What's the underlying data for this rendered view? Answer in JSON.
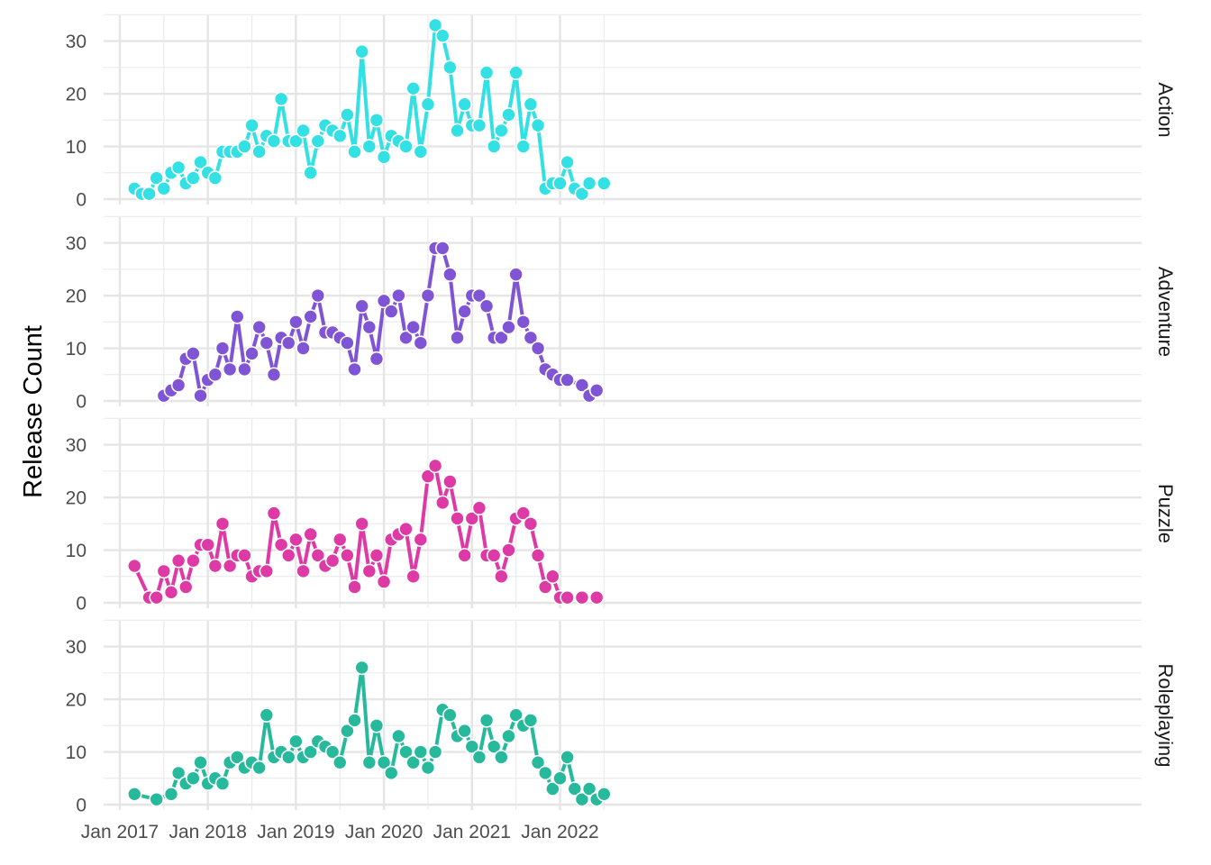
{
  "chart_data": {
    "type": "line",
    "ylabel": "Release Count",
    "xlabel": "",
    "ylim": [
      0,
      33
    ],
    "y_ticks": [
      0,
      10,
      20,
      30
    ],
    "x_range": [
      "2017-01-01",
      "2022-07-01"
    ],
    "x_ticks": [
      {
        "date": "2017-01-01",
        "label": "Jan 2017"
      },
      {
        "date": "2018-01-01",
        "label": "Jan 2018"
      },
      {
        "date": "2019-01-01",
        "label": "Jan 2019"
      },
      {
        "date": "2020-01-01",
        "label": "Jan 2020"
      },
      {
        "date": "2021-01-01",
        "label": "Jan 2021"
      },
      {
        "date": "2022-01-01",
        "label": "Jan 2022"
      }
    ],
    "grid": true,
    "legend": "none",
    "series": [
      {
        "name": "Action",
        "color": "#33e0e3",
        "points": [
          [
            "2017-03-01",
            2
          ],
          [
            "2017-04-01",
            1
          ],
          [
            "2017-05-01",
            1
          ],
          [
            "2017-06-01",
            4
          ],
          [
            "2017-07-01",
            2
          ],
          [
            "2017-08-01",
            5
          ],
          [
            "2017-09-01",
            6
          ],
          [
            "2017-10-01",
            3
          ],
          [
            "2017-11-01",
            4
          ],
          [
            "2017-12-01",
            7
          ],
          [
            "2018-01-01",
            5
          ],
          [
            "2018-02-01",
            4
          ],
          [
            "2018-03-01",
            9
          ],
          [
            "2018-04-01",
            9
          ],
          [
            "2018-05-01",
            9
          ],
          [
            "2018-06-01",
            10
          ],
          [
            "2018-07-01",
            14
          ],
          [
            "2018-08-01",
            9
          ],
          [
            "2018-09-01",
            12
          ],
          [
            "2018-10-01",
            11
          ],
          [
            "2018-11-01",
            19
          ],
          [
            "2018-12-01",
            11
          ],
          [
            "2019-01-01",
            11
          ],
          [
            "2019-02-01",
            13
          ],
          [
            "2019-03-01",
            5
          ],
          [
            "2019-04-01",
            11
          ],
          [
            "2019-05-01",
            14
          ],
          [
            "2019-06-01",
            13
          ],
          [
            "2019-07-01",
            12
          ],
          [
            "2019-08-01",
            16
          ],
          [
            "2019-09-01",
            9
          ],
          [
            "2019-10-01",
            28
          ],
          [
            "2019-11-01",
            10
          ],
          [
            "2019-12-01",
            15
          ],
          [
            "2020-01-01",
            8
          ],
          [
            "2020-02-01",
            12
          ],
          [
            "2020-03-01",
            11
          ],
          [
            "2020-04-01",
            10
          ],
          [
            "2020-05-01",
            21
          ],
          [
            "2020-06-01",
            9
          ],
          [
            "2020-07-01",
            18
          ],
          [
            "2020-08-01",
            33
          ],
          [
            "2020-09-01",
            31
          ],
          [
            "2020-10-01",
            25
          ],
          [
            "2020-11-01",
            13
          ],
          [
            "2020-12-01",
            18
          ],
          [
            "2021-01-01",
            14
          ],
          [
            "2021-02-01",
            14
          ],
          [
            "2021-03-01",
            24
          ],
          [
            "2021-04-01",
            10
          ],
          [
            "2021-05-01",
            13
          ],
          [
            "2021-06-01",
            16
          ],
          [
            "2021-07-01",
            24
          ],
          [
            "2021-08-01",
            10
          ],
          [
            "2021-09-01",
            18
          ],
          [
            "2021-10-01",
            14
          ],
          [
            "2021-11-01",
            2
          ],
          [
            "2021-12-01",
            3
          ],
          [
            "2022-01-01",
            3
          ],
          [
            "2022-02-01",
            7
          ],
          [
            "2022-03-01",
            2
          ],
          [
            "2022-04-01",
            1
          ],
          [
            "2022-05-01",
            3
          ],
          [
            "2022-07-01",
            3
          ]
        ]
      },
      {
        "name": "Adventure",
        "color": "#7f55d6",
        "points": [
          [
            "2017-07-01",
            1
          ],
          [
            "2017-08-01",
            2
          ],
          [
            "2017-09-01",
            3
          ],
          [
            "2017-10-01",
            8
          ],
          [
            "2017-11-01",
            9
          ],
          [
            "2017-12-01",
            1
          ],
          [
            "2018-01-01",
            4
          ],
          [
            "2018-02-01",
            5
          ],
          [
            "2018-03-01",
            10
          ],
          [
            "2018-04-01",
            6
          ],
          [
            "2018-05-01",
            16
          ],
          [
            "2018-06-01",
            6
          ],
          [
            "2018-07-01",
            9
          ],
          [
            "2018-08-01",
            14
          ],
          [
            "2018-09-01",
            11
          ],
          [
            "2018-10-01",
            5
          ],
          [
            "2018-11-01",
            12
          ],
          [
            "2018-12-01",
            11
          ],
          [
            "2019-01-01",
            15
          ],
          [
            "2019-02-01",
            10
          ],
          [
            "2019-03-01",
            16
          ],
          [
            "2019-04-01",
            20
          ],
          [
            "2019-05-01",
            13
          ],
          [
            "2019-06-01",
            13
          ],
          [
            "2019-07-01",
            12
          ],
          [
            "2019-08-01",
            11
          ],
          [
            "2019-09-01",
            6
          ],
          [
            "2019-10-01",
            18
          ],
          [
            "2019-11-01",
            14
          ],
          [
            "2019-12-01",
            8
          ],
          [
            "2020-01-01",
            19
          ],
          [
            "2020-02-01",
            17
          ],
          [
            "2020-03-01",
            20
          ],
          [
            "2020-04-01",
            12
          ],
          [
            "2020-05-01",
            14
          ],
          [
            "2020-06-01",
            11
          ],
          [
            "2020-07-01",
            20
          ],
          [
            "2020-08-01",
            29
          ],
          [
            "2020-09-01",
            29
          ],
          [
            "2020-10-01",
            24
          ],
          [
            "2020-11-01",
            12
          ],
          [
            "2020-12-01",
            17
          ],
          [
            "2021-01-01",
            20
          ],
          [
            "2021-02-01",
            20
          ],
          [
            "2021-03-01",
            18
          ],
          [
            "2021-04-01",
            12
          ],
          [
            "2021-05-01",
            12
          ],
          [
            "2021-06-01",
            14
          ],
          [
            "2021-07-01",
            24
          ],
          [
            "2021-08-01",
            15
          ],
          [
            "2021-09-01",
            12
          ],
          [
            "2021-10-01",
            10
          ],
          [
            "2021-11-01",
            6
          ],
          [
            "2021-12-01",
            5
          ],
          [
            "2022-01-01",
            4
          ],
          [
            "2022-02-01",
            4
          ],
          [
            "2022-04-01",
            3
          ],
          [
            "2022-05-01",
            1
          ],
          [
            "2022-06-01",
            2
          ]
        ]
      },
      {
        "name": "Puzzle",
        "color": "#dd3aa5",
        "points": [
          [
            "2017-03-01",
            7
          ],
          [
            "2017-05-01",
            1
          ],
          [
            "2017-06-01",
            1
          ],
          [
            "2017-07-01",
            6
          ],
          [
            "2017-08-01",
            2
          ],
          [
            "2017-09-01",
            8
          ],
          [
            "2017-10-01",
            3
          ],
          [
            "2017-11-01",
            8
          ],
          [
            "2017-12-01",
            11
          ],
          [
            "2018-01-01",
            11
          ],
          [
            "2018-02-01",
            7
          ],
          [
            "2018-03-01",
            15
          ],
          [
            "2018-04-01",
            7
          ],
          [
            "2018-05-01",
            9
          ],
          [
            "2018-06-01",
            9
          ],
          [
            "2018-07-01",
            5
          ],
          [
            "2018-08-01",
            6
          ],
          [
            "2018-09-01",
            6
          ],
          [
            "2018-10-01",
            17
          ],
          [
            "2018-11-01",
            11
          ],
          [
            "2018-12-01",
            9
          ],
          [
            "2019-01-01",
            12
          ],
          [
            "2019-02-01",
            6
          ],
          [
            "2019-03-01",
            13
          ],
          [
            "2019-04-01",
            9
          ],
          [
            "2019-05-01",
            7
          ],
          [
            "2019-06-01",
            8
          ],
          [
            "2019-07-01",
            12
          ],
          [
            "2019-08-01",
            9
          ],
          [
            "2019-09-01",
            3
          ],
          [
            "2019-10-01",
            15
          ],
          [
            "2019-11-01",
            6
          ],
          [
            "2019-12-01",
            9
          ],
          [
            "2020-01-01",
            4
          ],
          [
            "2020-02-01",
            12
          ],
          [
            "2020-03-01",
            13
          ],
          [
            "2020-04-01",
            14
          ],
          [
            "2020-05-01",
            5
          ],
          [
            "2020-06-01",
            12
          ],
          [
            "2020-07-01",
            24
          ],
          [
            "2020-08-01",
            26
          ],
          [
            "2020-09-01",
            19
          ],
          [
            "2020-10-01",
            23
          ],
          [
            "2020-11-01",
            16
          ],
          [
            "2020-12-01",
            9
          ],
          [
            "2021-01-01",
            16
          ],
          [
            "2021-02-01",
            18
          ],
          [
            "2021-03-01",
            9
          ],
          [
            "2021-04-01",
            9
          ],
          [
            "2021-05-01",
            5
          ],
          [
            "2021-06-01",
            10
          ],
          [
            "2021-07-01",
            16
          ],
          [
            "2021-08-01",
            17
          ],
          [
            "2021-09-01",
            15
          ],
          [
            "2021-10-01",
            9
          ],
          [
            "2021-11-01",
            3
          ],
          [
            "2021-12-01",
            5
          ],
          [
            "2022-01-01",
            1
          ],
          [
            "2022-02-01",
            1
          ],
          [
            "2022-04-01",
            1
          ],
          [
            "2022-06-01",
            1
          ]
        ]
      },
      {
        "name": "Roleplaying",
        "color": "#27b99b",
        "points": [
          [
            "2017-03-01",
            2
          ],
          [
            "2017-06-01",
            1
          ],
          [
            "2017-08-01",
            2
          ],
          [
            "2017-09-01",
            6
          ],
          [
            "2017-10-01",
            4
          ],
          [
            "2017-11-01",
            5
          ],
          [
            "2017-12-01",
            8
          ],
          [
            "2018-01-01",
            4
          ],
          [
            "2018-02-01",
            5
          ],
          [
            "2018-03-01",
            4
          ],
          [
            "2018-04-01",
            8
          ],
          [
            "2018-05-01",
            9
          ],
          [
            "2018-06-01",
            7
          ],
          [
            "2018-07-01",
            8
          ],
          [
            "2018-08-01",
            7
          ],
          [
            "2018-09-01",
            17
          ],
          [
            "2018-10-01",
            9
          ],
          [
            "2018-11-01",
            10
          ],
          [
            "2018-12-01",
            9
          ],
          [
            "2019-01-01",
            12
          ],
          [
            "2019-02-01",
            9
          ],
          [
            "2019-03-01",
            10
          ],
          [
            "2019-04-01",
            12
          ],
          [
            "2019-05-01",
            11
          ],
          [
            "2019-06-01",
            10
          ],
          [
            "2019-07-01",
            8
          ],
          [
            "2019-08-01",
            14
          ],
          [
            "2019-09-01",
            16
          ],
          [
            "2019-10-01",
            26
          ],
          [
            "2019-11-01",
            8
          ],
          [
            "2019-12-01",
            15
          ],
          [
            "2020-01-01",
            8
          ],
          [
            "2020-02-01",
            6
          ],
          [
            "2020-03-01",
            13
          ],
          [
            "2020-04-01",
            10
          ],
          [
            "2020-05-01",
            8
          ],
          [
            "2020-06-01",
            10
          ],
          [
            "2020-07-01",
            7
          ],
          [
            "2020-08-01",
            10
          ],
          [
            "2020-09-01",
            18
          ],
          [
            "2020-10-01",
            17
          ],
          [
            "2020-11-01",
            13
          ],
          [
            "2020-12-01",
            14
          ],
          [
            "2021-01-01",
            11
          ],
          [
            "2021-02-01",
            9
          ],
          [
            "2021-03-01",
            16
          ],
          [
            "2021-04-01",
            11
          ],
          [
            "2021-05-01",
            9
          ],
          [
            "2021-06-01",
            13
          ],
          [
            "2021-07-01",
            17
          ],
          [
            "2021-08-01",
            15
          ],
          [
            "2021-09-01",
            16
          ],
          [
            "2021-10-01",
            8
          ],
          [
            "2021-11-01",
            6
          ],
          [
            "2021-12-01",
            3
          ],
          [
            "2022-01-01",
            5
          ],
          [
            "2022-02-01",
            9
          ],
          [
            "2022-03-01",
            3
          ],
          [
            "2022-04-01",
            1
          ],
          [
            "2022-05-01",
            3
          ],
          [
            "2022-06-01",
            1
          ],
          [
            "2022-07-01",
            2
          ]
        ]
      }
    ]
  }
}
